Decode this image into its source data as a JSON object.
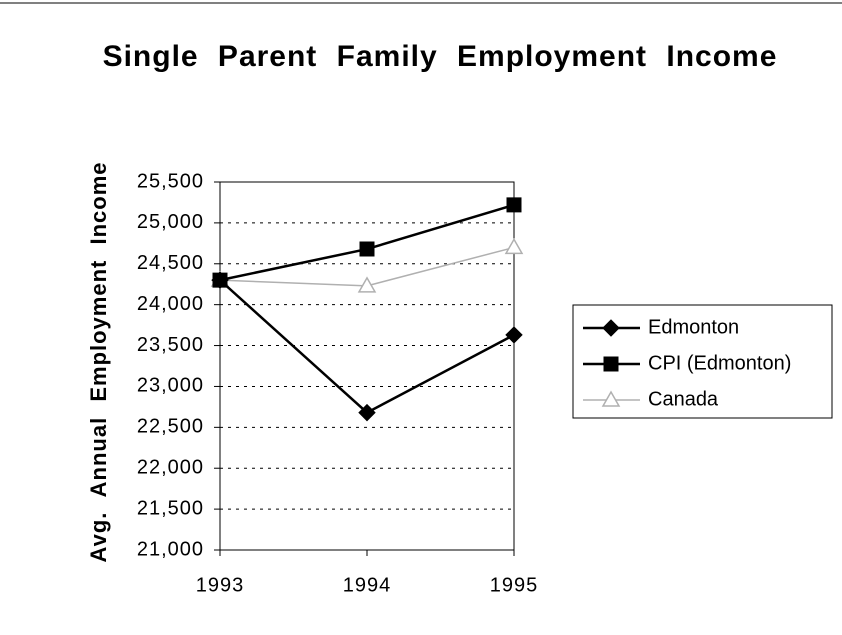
{
  "chart_data": {
    "type": "line",
    "title": "Single Parent Family Employment Income",
    "y_label": "Avg. Annual Employment Income",
    "categories": [
      "1993",
      "1994",
      "1995"
    ],
    "series": [
      {
        "name": "Edmonton",
        "color": "#000000",
        "marker": "diamond",
        "values": [
          24300,
          22680,
          23630
        ]
      },
      {
        "name": "CPI (Edmonton)",
        "color": "#000000",
        "marker": "square",
        "values": [
          24300,
          24680,
          25220
        ]
      },
      {
        "name": "Canada",
        "color": "#b0b0b0",
        "marker": "triangle",
        "values": [
          24300,
          24230,
          24700
        ]
      }
    ],
    "ylim": [
      21000,
      25500
    ],
    "yticks": [
      {
        "value": 21000,
        "label": "21,000"
      },
      {
        "value": 21500,
        "label": "21,500"
      },
      {
        "value": 22000,
        "label": "22,000"
      },
      {
        "value": 22500,
        "label": "22,500"
      },
      {
        "value": 23000,
        "label": "23,000"
      },
      {
        "value": 23500,
        "label": "23,500"
      },
      {
        "value": 24000,
        "label": "24,000"
      },
      {
        "value": 24500,
        "label": "24,500"
      },
      {
        "value": 25000,
        "label": "25,000"
      },
      {
        "value": 25500,
        "label": "25,500"
      }
    ],
    "grid": true,
    "legend": "right"
  }
}
